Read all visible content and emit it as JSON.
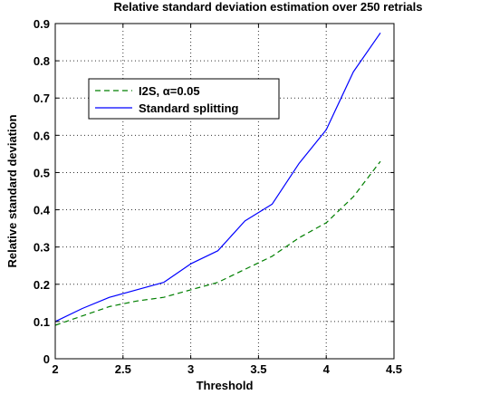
{
  "chart_data": {
    "type": "line",
    "title": "Relative standard deviation estimation over 250 retrials",
    "xlabel": "Threshold",
    "ylabel": "Relative standard deviation",
    "xlim": [
      2,
      4.5
    ],
    "ylim": [
      0,
      0.9
    ],
    "x_ticks": [
      "2",
      "2.5",
      "3",
      "3.5",
      "4",
      "4.5"
    ],
    "y_ticks": [
      "0",
      "0.1",
      "0.2",
      "0.3",
      "0.4",
      "0.5",
      "0.6",
      "0.7",
      "0.8",
      "0.9"
    ],
    "grid": true,
    "legend_position": "upper-left",
    "series": [
      {
        "name": "I2S, α=0.05",
        "color": "#007f00",
        "style": "dashed",
        "x": [
          2.0,
          2.2,
          2.4,
          2.6,
          2.8,
          3.0,
          3.2,
          3.4,
          3.6,
          3.8,
          4.0,
          4.2,
          4.4
        ],
        "y": [
          0.09,
          0.115,
          0.14,
          0.155,
          0.165,
          0.185,
          0.205,
          0.24,
          0.275,
          0.325,
          0.365,
          0.435,
          0.53
        ]
      },
      {
        "name": "Standard splitting",
        "color": "#0000ff",
        "style": "solid",
        "x": [
          2.0,
          2.2,
          2.4,
          2.6,
          2.8,
          3.0,
          3.2,
          3.4,
          3.6,
          3.8,
          4.0,
          4.2,
          4.4
        ],
        "y": [
          0.1,
          0.135,
          0.165,
          0.185,
          0.205,
          0.255,
          0.29,
          0.37,
          0.415,
          0.525,
          0.615,
          0.77,
          0.875
        ]
      }
    ]
  }
}
